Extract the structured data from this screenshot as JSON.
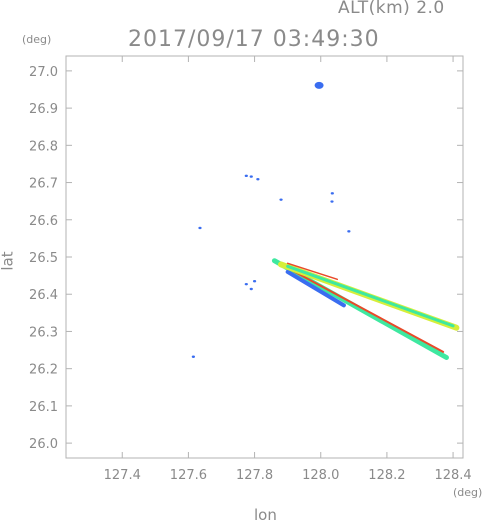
{
  "header": {
    "alt_label": "ALT(km)  2.0",
    "datetime": "2017/09/17 03:49:30"
  },
  "axes": {
    "y_unit": "(deg)",
    "x_unit": "(deg)",
    "x_title": "lon",
    "y_title": "lat"
  },
  "chart_data": {
    "type": "scatter",
    "title": "2017/09/17 03:49:30",
    "xlabel": "lon",
    "ylabel": "lat",
    "xlim": [
      127.23,
      128.43
    ],
    "ylim": [
      25.96,
      27.04
    ],
    "x_ticks": [
      "127.4",
      "127.6",
      "127.8",
      "128.0",
      "128.2",
      "128.4"
    ],
    "y_ticks": [
      "26.0",
      "26.1",
      "26.2",
      "26.3",
      "26.4",
      "26.5",
      "26.6",
      "26.7",
      "26.8",
      "26.9",
      "27.0"
    ],
    "grid": false,
    "blobs": [
      {
        "lon": 127.995,
        "lat": 26.961,
        "color": "#3a6df0"
      },
      {
        "lon": 127.79,
        "lat": 26.716,
        "color": "#3a6df0"
      },
      {
        "lon": 127.81,
        "lat": 26.709,
        "color": "#3a6df0"
      },
      {
        "lon": 127.775,
        "lat": 26.718,
        "color": "#3a6df0"
      },
      {
        "lon": 127.88,
        "lat": 26.654,
        "color": "#3a6df0"
      },
      {
        "lon": 128.035,
        "lat": 26.671,
        "color": "#3a6df0"
      },
      {
        "lon": 128.034,
        "lat": 26.649,
        "color": "#3a6df0"
      },
      {
        "lon": 128.085,
        "lat": 26.569,
        "color": "#3a6df0"
      },
      {
        "lon": 127.635,
        "lat": 26.578,
        "color": "#3a6df0"
      },
      {
        "lon": 127.775,
        "lat": 26.427,
        "color": "#3a6df0"
      },
      {
        "lon": 127.79,
        "lat": 26.414,
        "color": "#3a6df0"
      },
      {
        "lon": 127.615,
        "lat": 26.232,
        "color": "#3a6df0"
      },
      {
        "lon": 127.8,
        "lat": 26.435,
        "color": "#3a6df0"
      }
    ],
    "streaks": [
      {
        "name": "lower-outer",
        "from": [
          127.86,
          26.49
        ],
        "to": [
          128.38,
          26.23
        ],
        "width": 5,
        "color": "#3ee8a0"
      },
      {
        "name": "lower-blue",
        "from": [
          127.9,
          26.46
        ],
        "to": [
          128.07,
          26.37
        ],
        "width": 4,
        "color": "#3a6df0"
      },
      {
        "name": "lower-red",
        "from": [
          127.88,
          26.48
        ],
        "to": [
          128.37,
          26.245
        ],
        "width": 2,
        "color": "#e84a2a"
      },
      {
        "name": "upper-outer",
        "from": [
          127.88,
          26.48
        ],
        "to": [
          128.41,
          26.31
        ],
        "width": 6,
        "color": "#d6ee3a"
      },
      {
        "name": "upper-green",
        "from": [
          127.9,
          26.475
        ],
        "to": [
          128.4,
          26.315
        ],
        "width": 3,
        "color": "#3ee8a0"
      },
      {
        "name": "upper-red",
        "from": [
          127.9,
          26.483
        ],
        "to": [
          128.05,
          26.44
        ],
        "width": 1.5,
        "color": "#e84a2a"
      }
    ]
  }
}
